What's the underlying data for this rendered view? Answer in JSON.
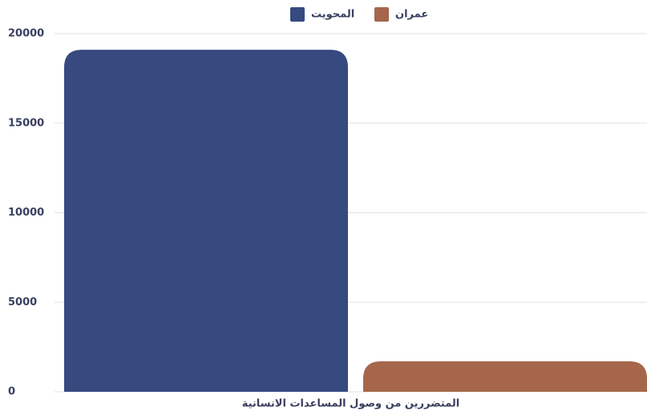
{
  "chart_data": {
    "type": "bar",
    "categories": [
      "المتضررين من وصول المساعدات الانسانية"
    ],
    "series": [
      {
        "name": "المحويت",
        "color": "#364a80",
        "values": [
          19100
        ]
      },
      {
        "name": "عمران",
        "color": "#a5664b",
        "values": [
          1700
        ]
      }
    ],
    "ylim": [
      0,
      20000
    ],
    "yticks": [
      0,
      5000,
      10000,
      15000,
      20000
    ],
    "grid": true
  }
}
